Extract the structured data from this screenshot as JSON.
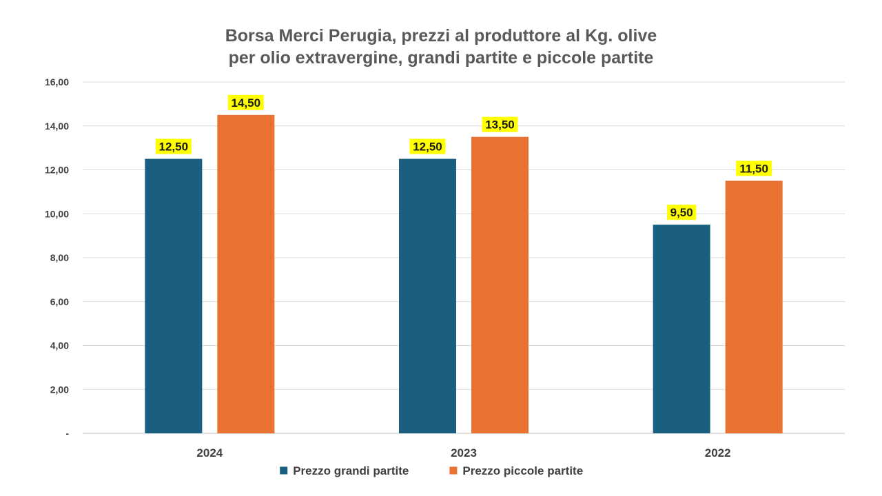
{
  "chart_data": {
    "type": "bar",
    "title_lines": [
      "Borsa Merci Perugia, prezzi al produttore al Kg. olive",
      "per olio extravergine, grandi partite e piccole partite"
    ],
    "categories": [
      "2024",
      "2023",
      "2022"
    ],
    "series": [
      {
        "name": "Prezzo grandi partite",
        "color": "#1a5f80",
        "values": [
          12.5,
          12.5,
          9.5
        ]
      },
      {
        "name": "Prezzo piccole partite",
        "color": "#e97132",
        "values": [
          14.5,
          13.5,
          11.5
        ]
      }
    ],
    "data_labels": [
      [
        "12,50",
        "12,50",
        "9,50"
      ],
      [
        "14,50",
        "13,50",
        "11,50"
      ]
    ],
    "data_label_highlight": "#ffff00",
    "ylim": [
      0,
      16
    ],
    "y_ticks": [
      {
        "value": 0,
        "label": "-"
      },
      {
        "value": 2,
        "label": "2,00"
      },
      {
        "value": 4,
        "label": "4,00"
      },
      {
        "value": 6,
        "label": "6,00"
      },
      {
        "value": 8,
        "label": "8,00"
      },
      {
        "value": 10,
        "label": "10,00"
      },
      {
        "value": 12,
        "label": "12,00"
      },
      {
        "value": 14,
        "label": "14,00"
      },
      {
        "value": 16,
        "label": "16,00"
      }
    ],
    "grid": true,
    "legend_position": "bottom"
  }
}
